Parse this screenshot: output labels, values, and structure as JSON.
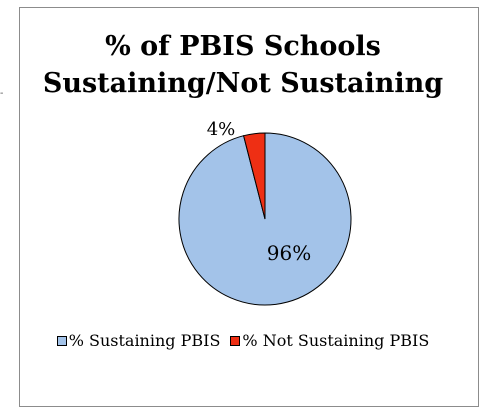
{
  "chart_data": {
    "type": "pie",
    "title_lines": [
      "% of PBIS Schools",
      "Sustaining/Not Sustaining"
    ],
    "series": [
      {
        "name": "% Sustaining PBIS",
        "value": 96,
        "label": "96%",
        "color": "#a3c3e9"
      },
      {
        "name": "% Not Sustaining PBIS",
        "value": 4,
        "label": "4%",
        "color": "#ee2f14"
      }
    ],
    "legend_position": "bottom",
    "start_angle_deg": 0,
    "direction": "counterclockwise"
  },
  "stray_mark": "-"
}
